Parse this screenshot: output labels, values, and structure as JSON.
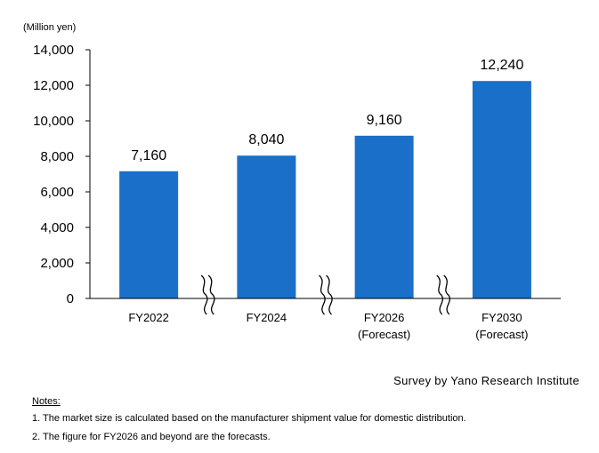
{
  "chart_data": {
    "type": "bar",
    "unit_label": "(Million yen)",
    "categories": [
      {
        "line1": "FY2022",
        "line2": ""
      },
      {
        "line1": "FY2024",
        "line2": ""
      },
      {
        "line1": "FY2026",
        "line2": "(Forecast)"
      },
      {
        "line1": "FY2030",
        "line2": "(Forecast)"
      }
    ],
    "values": [
      7160,
      8040,
      9160,
      12240
    ],
    "data_labels": [
      "7,160",
      "8,040",
      "9,160",
      "12,240"
    ],
    "yticks": [
      "0",
      "2,000",
      "4,000",
      "6,000",
      "8,000",
      "10,000",
      "12,000",
      "14,000"
    ],
    "ylim": [
      0,
      14000
    ],
    "grid": false,
    "axis_breaks": "between categories",
    "bar_color": "#1a6fc9"
  },
  "source": "Survey by Yano Research Institute",
  "notes": {
    "title": "Notes:",
    "items": [
      "1. The market size is calculated based on the manufacturer shipment value for domestic distribution.",
      "2. The figure for FY2026 and beyond are the forecasts."
    ]
  }
}
